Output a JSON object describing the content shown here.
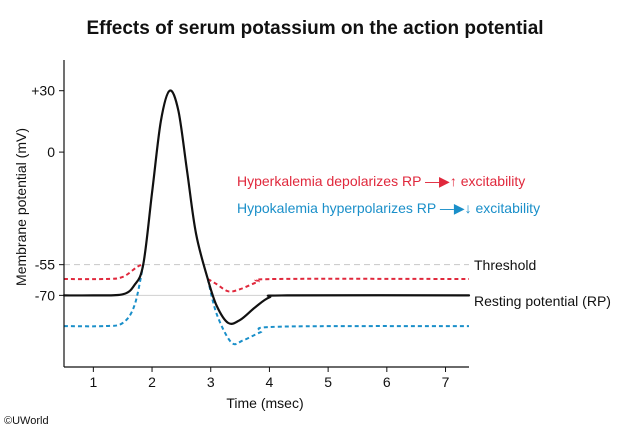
{
  "chart_data": {
    "type": "line",
    "title": "Effects of serum potassium on the action potential",
    "xlabel": "Time (msec)",
    "ylabel": "Membrane potential (mV)",
    "xlim": [
      0.5,
      7.4
    ],
    "ylim": [
      -105,
      45
    ],
    "x_ticks": [
      1,
      2,
      3,
      4,
      5,
      6,
      7
    ],
    "y_ticks": [
      {
        "value": 30,
        "label": "+30"
      },
      {
        "value": 0,
        "label": "0"
      },
      {
        "value": -55,
        "label": "-55"
      },
      {
        "value": -70,
        "label": "-70"
      }
    ],
    "reference_lines": [
      {
        "name": "Threshold",
        "y": -55,
        "color": "#c8c8c8",
        "style": "dashed"
      },
      {
        "name": "Resting potential (RP)",
        "y": -70,
        "color": "#d0d0d0",
        "style": "solid"
      }
    ],
    "series": [
      {
        "key": "normal",
        "color": "#111111",
        "style": "solid",
        "points": [
          [
            0.5,
            -70
          ],
          [
            1.0,
            -70
          ],
          [
            1.5,
            -69.5
          ],
          [
            1.7,
            -65
          ],
          [
            1.85,
            -55
          ],
          [
            2.0,
            -20
          ],
          [
            2.15,
            15
          ],
          [
            2.3,
            30
          ],
          [
            2.45,
            20
          ],
          [
            2.6,
            -10
          ],
          [
            2.75,
            -40
          ],
          [
            2.95,
            -62
          ],
          [
            3.1,
            -75
          ],
          [
            3.3,
            -83.5
          ],
          [
            3.5,
            -82
          ],
          [
            3.75,
            -76
          ],
          [
            4.0,
            -71
          ],
          [
            4.3,
            -70
          ],
          [
            7.4,
            -70
          ]
        ]
      },
      {
        "key": "hyperkalemia",
        "color": "#e0283c",
        "style": "dotted",
        "points": [
          [
            0.5,
            -62
          ],
          [
            1.2,
            -62
          ],
          [
            1.5,
            -61
          ],
          [
            1.75,
            -56
          ],
          [
            1.85,
            -55
          ]
        ],
        "points_after": [
          [
            2.95,
            -62
          ],
          [
            3.1,
            -64.5
          ],
          [
            3.3,
            -68
          ],
          [
            3.5,
            -67
          ],
          [
            3.8,
            -63.5
          ],
          [
            4.1,
            -62
          ],
          [
            7.4,
            -62
          ]
        ]
      },
      {
        "key": "hypokalemia",
        "color": "#1a8fc9",
        "style": "dotted",
        "points": [
          [
            0.5,
            -85
          ],
          [
            1.2,
            -85
          ],
          [
            1.5,
            -83.5
          ],
          [
            1.7,
            -75
          ],
          [
            1.85,
            -55
          ]
        ],
        "points_after": [
          [
            2.95,
            -62
          ],
          [
            3.1,
            -79
          ],
          [
            3.35,
            -93
          ],
          [
            3.55,
            -92
          ],
          [
            3.85,
            -88
          ],
          [
            4.15,
            -85.3
          ],
          [
            7.4,
            -85
          ]
        ]
      }
    ],
    "annotations": [
      {
        "key": "hyper",
        "text": "Hyperkalemia depolarizes RP —▶↑ excitability",
        "color": "#e0283c"
      },
      {
        "key": "hypo",
        "text": "Hypokalemia hyperpolarizes RP —▶↓ excitability",
        "color": "#1a8fc9"
      }
    ],
    "grid": false,
    "legend": "none"
  },
  "copyright": "©UWorld"
}
